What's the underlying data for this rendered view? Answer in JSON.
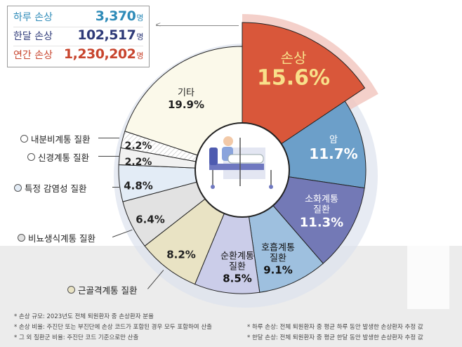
{
  "stats": [
    {
      "label": "하루 손상",
      "value": "3,370",
      "unit": "명",
      "color": "#2e8bb8"
    },
    {
      "label": "한달 손상",
      "value": "102,517",
      "unit": "명",
      "color": "#2e3a78"
    },
    {
      "label": "연간 손상",
      "value": "1,230,202",
      "unit": "명",
      "color": "#c8452e"
    }
  ],
  "center_icon": "hospital-bed-patient-icon",
  "chart_data": {
    "type": "pie",
    "variant": "donut",
    "start": "12 o'clock, clockwise",
    "categories": [
      "손상",
      "암",
      "소화계통 질환",
      "호흡계통 질환",
      "순환계통 질환",
      "근골격계통 질환",
      "비뇨생식계통 질환",
      "특정 감염성 질환",
      "신경계통 질환",
      "내분비계통 질환",
      "기타"
    ],
    "values": [
      15.6,
      11.7,
      11.3,
      9.1,
      8.5,
      8.2,
      6.4,
      4.8,
      2.2,
      2.2,
      19.9
    ],
    "labels": [
      "15.6%",
      "11.7%",
      "11.3%",
      "9.1%",
      "8.5%",
      "8.2%",
      "6.4%",
      "4.8%",
      "2.2%",
      "2.2%",
      "19.9%"
    ],
    "colors": [
      "#d9573a",
      "#6c9fc9",
      "#7379b6",
      "#9ec0df",
      "#cbcde9",
      "#e9e3c4",
      "#e2e2e2",
      "#e3ecf6",
      "#f1f1f1",
      "#ffffff",
      "#fbf9ea"
    ],
    "highlight": "손상"
  },
  "slice_names": {
    "injury": "손상",
    "cancer": "암",
    "digestive": "소화계통\n질환",
    "respiratory": "호흡계통\n질환",
    "circulatory": "순환계통\n질환",
    "other": "기타"
  },
  "legend": {
    "endocrine": "내분비계통 질환",
    "nervous": "신경계통 질환",
    "infectious": "특정 감염성 질환",
    "urogenital": "비뇨생식계통 질환",
    "musculoskeletal": "근골격계통 질환"
  },
  "notes": {
    "n1": "* 손상 규모: 2023년도 전체 퇴원환자 중 손상환자 분율",
    "n2": "* 손상 비율: 주진단 또는 부진단에 손상 코드가 포함된 경우 모두 포함하여 산출",
    "n3": "* 그 외 질환군 비율: 주진단 코드 기준으로만 산출",
    "n4": "* 하루 손상: 전체 퇴원환자 중 평균 하루 동안 발생한 손상환자 추정 값",
    "n5": "* 한달 손상: 전체 퇴원환자 중 평균 한달 동안 발생한 손상환자 추정 값"
  }
}
